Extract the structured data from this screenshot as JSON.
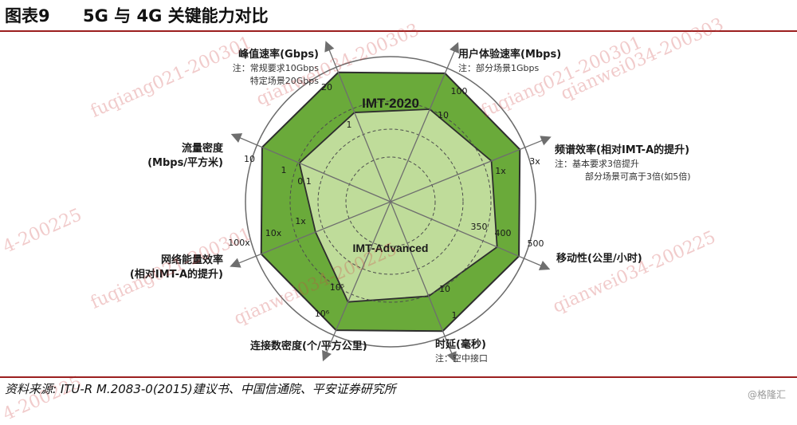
{
  "header": {
    "figure_no": "图表9",
    "title": "5G 与 4G 关键能力对比"
  },
  "footer": {
    "source": "资料来源: ITU-R M.2083-0(2015)建议书、中国信通院、平安证券研究所",
    "logo": "@格隆汇"
  },
  "watermarks": [
    "fuqiang021-200301",
    "qianwei034-200303",
    "fuqiang021-200301",
    "qianwei034-200303",
    "4-200225",
    "fuqiang021-200301",
    "qianwei034-200225",
    "qianwei034-200225",
    "4-200225"
  ],
  "colors": {
    "imt2020_fill": "#6aaa3a",
    "imt_adv_fill": "#bfdc9a",
    "outline": "#2e2e2e",
    "axis": "#6e6e6e",
    "accent": "#9c1f1f"
  },
  "chart_data": {
    "type": "radar",
    "series": [
      {
        "name": "IMT-2020",
        "values_label": [
          "20",
          "100",
          "3x",
          "500",
          "1",
          "10⁶",
          "100x",
          "10"
        ]
      },
      {
        "name": "IMT-Advanced",
        "values_label": [
          "1",
          "10",
          "1x",
          "350",
          "10",
          "10⁵",
          "1x",
          "0.1"
        ]
      }
    ],
    "axes": [
      {
        "name": "峰值速率(Gbps)",
        "notes": [
          "注：常规要求10Gbps",
          "特定场景20Gbps"
        ],
        "ticks": [
          "1",
          "20"
        ]
      },
      {
        "name": "用户体验速率(Mbps)",
        "notes": [
          "注：部分场景1Gbps"
        ],
        "ticks": [
          "10",
          "100"
        ]
      },
      {
        "name": "频谱效率(相对IMT-A的提升)",
        "notes": [
          "注：基本要求3倍提升",
          "部分场景可高于3倍(如5倍)"
        ],
        "ticks": [
          "1x",
          "3x"
        ]
      },
      {
        "name": "移动性(公里/小时)",
        "notes": [],
        "ticks": [
          "350",
          "400",
          "500"
        ]
      },
      {
        "name": "时延(毫秒)",
        "notes": [
          "注：空中接口"
        ],
        "ticks": [
          "10",
          "1"
        ]
      },
      {
        "name": "连接数密度(个/平方公里)",
        "notes": [],
        "ticks": [
          "10⁵",
          "10⁶"
        ]
      },
      {
        "name": "网络能量效率",
        "name_line2": "(相对IMT-A的提升)",
        "notes": [],
        "ticks": [
          "1x",
          "10x",
          "100x"
        ]
      },
      {
        "name": "流量密度",
        "name_line2": "(Mbps/平方米)",
        "notes": [],
        "ticks": [
          "0.1",
          "1",
          "10"
        ]
      }
    ]
  }
}
